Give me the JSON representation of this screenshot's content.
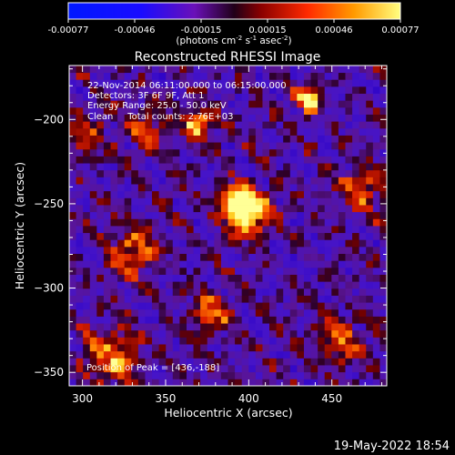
{
  "chart_data": {
    "type": "heatmap",
    "title": "Reconstructed RHESSI Image",
    "xlabel": "Heliocentric X (arcsec)",
    "ylabel": "Heliocentric Y (arcsec)",
    "xlim": [
      292,
      483
    ],
    "ylim": [
      -358,
      -168
    ],
    "x_ticks": [
      300,
      350,
      400,
      450
    ],
    "y_ticks": [
      -200,
      -250,
      -300,
      -350
    ],
    "colorbar": {
      "ticks": [
        "-0.00077",
        "-0.00046",
        "-0.00015",
        "0.00015",
        "0.00046",
        "0.00077"
      ],
      "range": [
        -0.00077,
        0.00077
      ],
      "units_line1": "(photons cm",
      "units_sup1": "-2",
      "units_mid": " s",
      "units_sup2": "-1",
      "units_mid2": " asec",
      "units_sup3": "-2",
      "units_end": ")"
    },
    "annotations": [
      "22-Nov-2014 06:11:00.000 to 06:15:00.000",
      "Detectors: 3F 6F 9F, Att 1",
      "Energy Range: 25.0 - 50.0 keV",
      "Clean     Total counts: 2.76E+03"
    ],
    "peak_label": "Position of Peak = [436,-188]",
    "peak": [
      436,
      -188
    ],
    "sources": [
      {
        "x": 400,
        "y": -255,
        "amp": 1.0,
        "sigma": 9
      },
      {
        "x": 392,
        "y": -248,
        "amp": 0.8,
        "sigma": 6
      },
      {
        "x": 369,
        "y": -201,
        "amp": 0.75,
        "sigma": 6
      },
      {
        "x": 436,
        "y": -188,
        "amp": 0.85,
        "sigma": 5
      },
      {
        "x": 330,
        "y": -278,
        "amp": 0.55,
        "sigma": 10
      },
      {
        "x": 318,
        "y": -340,
        "amp": 0.55,
        "sigma": 12
      },
      {
        "x": 378,
        "y": -315,
        "amp": 0.5,
        "sigma": 9
      },
      {
        "x": 468,
        "y": -240,
        "amp": 0.45,
        "sigma": 10
      },
      {
        "x": 340,
        "y": -205,
        "amp": 0.35,
        "sigma": 10
      },
      {
        "x": 455,
        "y": -332,
        "amp": 0.45,
        "sigma": 10
      },
      {
        "x": 300,
        "y": -210,
        "amp": 0.3,
        "sigma": 10
      }
    ]
  },
  "footer": {
    "date": "19-May-2022 18:54"
  }
}
